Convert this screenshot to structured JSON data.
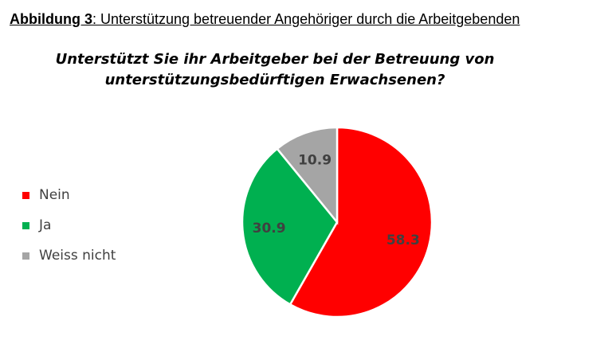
{
  "caption": {
    "prefix": "Abbildung 3",
    "text": ": Unterstützung betreuender Angehöriger durch die Arbeitgebenden"
  },
  "chart_data": {
    "type": "pie",
    "title_lines": [
      "Unterstützt Sie ihr Arbeitgeber bei der Betreuung von",
      "unterstützungsbedürftigen Erwachsenen?"
    ],
    "categories": [
      "Nein",
      "Ja",
      "Weiss nicht"
    ],
    "values": [
      58.3,
      30.9,
      10.9
    ],
    "colors": [
      "#ff0000",
      "#00b050",
      "#a5a5a5"
    ],
    "data_labels": [
      "58.3",
      "30.9",
      "10.9"
    ],
    "legend_position": "left"
  }
}
